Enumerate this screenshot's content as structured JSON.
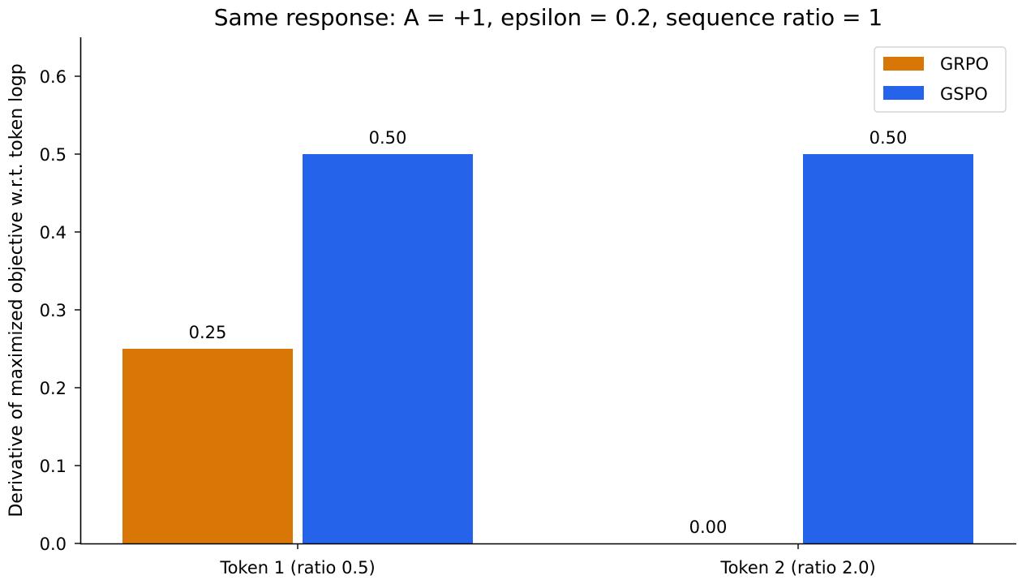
{
  "chart_data": {
    "type": "bar",
    "title": "Same response: A = +1, epsilon = 0.2, sequence ratio = 1",
    "xlabel": "",
    "ylabel": "Derivative of maximized objective w.r.t. token logp",
    "categories": [
      "Token 1 (ratio 0.5)",
      "Token 2 (ratio 2.0)"
    ],
    "series": [
      {
        "name": "GRPO",
        "values": [
          0.25,
          0.0
        ],
        "color": "#d97706"
      },
      {
        "name": "GSPO",
        "values": [
          0.5,
          0.5
        ],
        "color": "#2563eb"
      }
    ],
    "data_labels": [
      [
        "0.25",
        "0.00"
      ],
      [
        "0.50",
        "0.50"
      ]
    ],
    "ylim": [
      0,
      0.65
    ],
    "yticks": [
      0.0,
      0.1,
      0.2,
      0.3,
      0.4,
      0.5,
      0.6
    ],
    "ytick_labels": [
      "0.0",
      "0.1",
      "0.2",
      "0.3",
      "0.4",
      "0.5",
      "0.6"
    ],
    "grid": false,
    "legend_position": "top-right"
  }
}
